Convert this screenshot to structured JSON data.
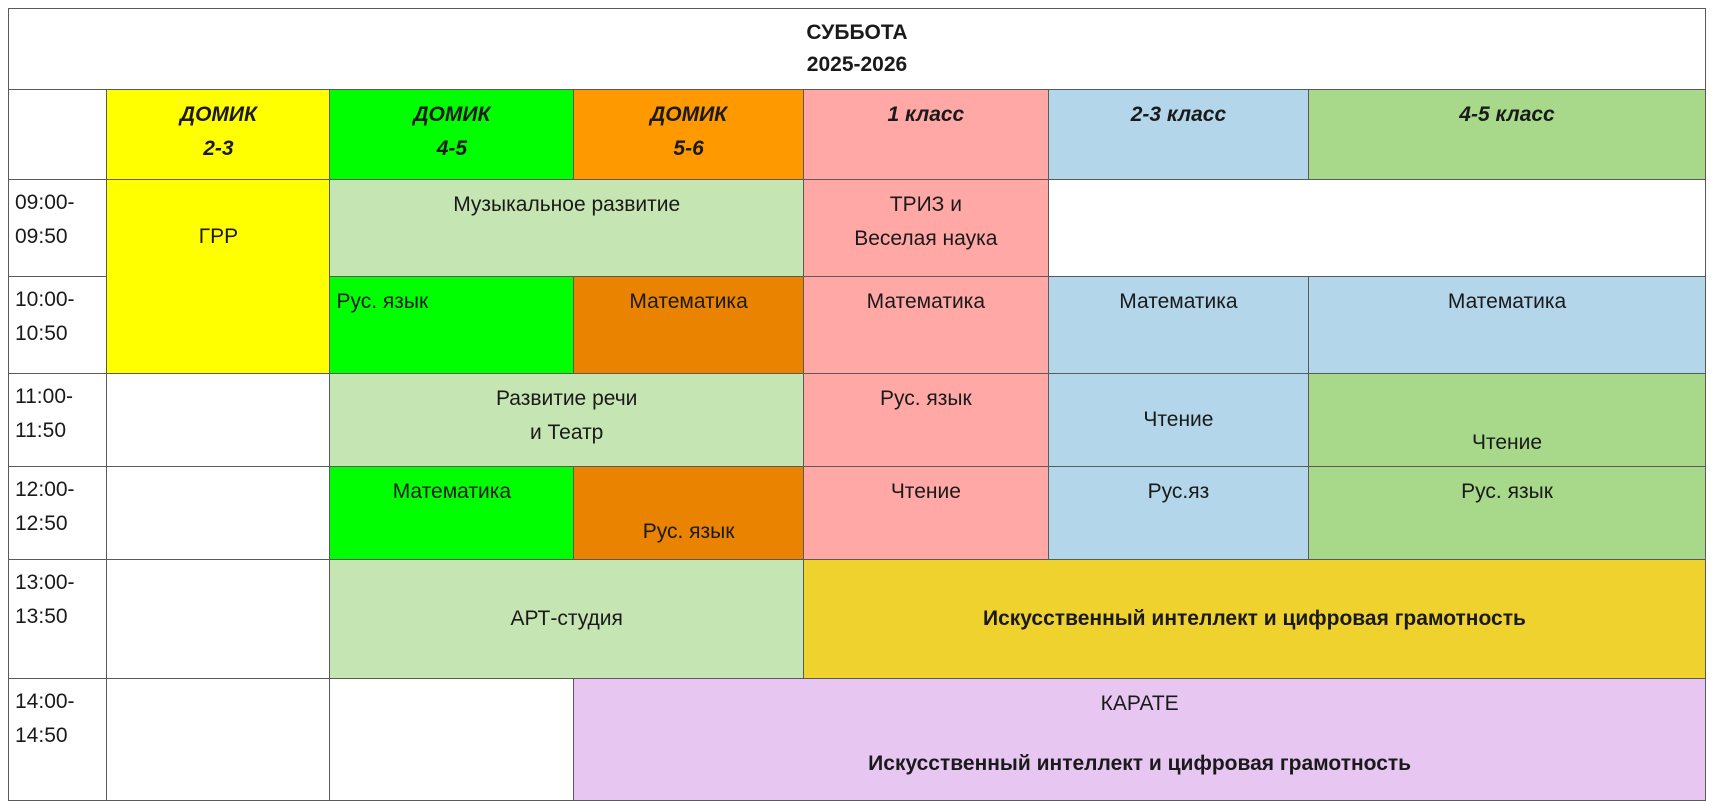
{
  "title": {
    "day": "СУББОТА",
    "year": "2025-2026"
  },
  "groups": [
    {
      "line1": "ДОМИК",
      "line2": "2-3"
    },
    {
      "line1": "ДОМИК",
      "line2": "4-5"
    },
    {
      "line1": "ДОМИК",
      "line2": "5-6"
    },
    {
      "line1": "1 класс",
      "line2": ""
    },
    {
      "line1": "2-3 класс",
      "line2": ""
    },
    {
      "line1": "4-5 класс",
      "line2": ""
    }
  ],
  "times": [
    {
      "start": "09:00-",
      "end": "09:50"
    },
    {
      "start": "10:00-",
      "end": "10:50"
    },
    {
      "start": "11:00-",
      "end": "11:50"
    },
    {
      "start": "12:00-",
      "end": "12:50"
    },
    {
      "start": "13:00-",
      "end": "13:50"
    },
    {
      "start": "14:00-",
      "end": "14:50"
    }
  ],
  "lessons": {
    "grr": "ГРР",
    "music": "Музыкальное развитие",
    "triz_1": "ТРИЗ и",
    "triz_2": "Веселая наука",
    "r2_rus": "Рус. язык",
    "r2_math_a": "Математика",
    "r2_math_b": "Математика",
    "r2_math_c": "Математика",
    "r2_math_d": "Математика",
    "speech_1": "Развитие речи",
    "speech_2": "и Театр",
    "r3_rus": "Рус. язык",
    "r3_read_a": "Чтение",
    "r3_read_b": "Чтение",
    "r4_math": "Математика",
    "r4_rus_a": "Рус. язык",
    "r4_read": "Чтение",
    "r4_rus_b": "Рус.яз",
    "r4_rus_c": "Рус. язык",
    "art": "АРТ-студия",
    "ai_1": "Искусственный интеллект и цифровая грамотность",
    "karate": "КАРАТЕ",
    "ai_2": "Искусственный интеллект и цифровая грамотность"
  },
  "colors": {
    "domik_2_3": "#ffff00",
    "domik_4_5": "#00ff00",
    "domik_5_6": "#ff9900",
    "class_1": "#ffa8a6",
    "class_2_3": "#b3d6ea",
    "class_4_5": "#a8d98a",
    "shared": "#c5e5b3",
    "ai": "#f0d22e",
    "karate": "#e8c6f2"
  }
}
